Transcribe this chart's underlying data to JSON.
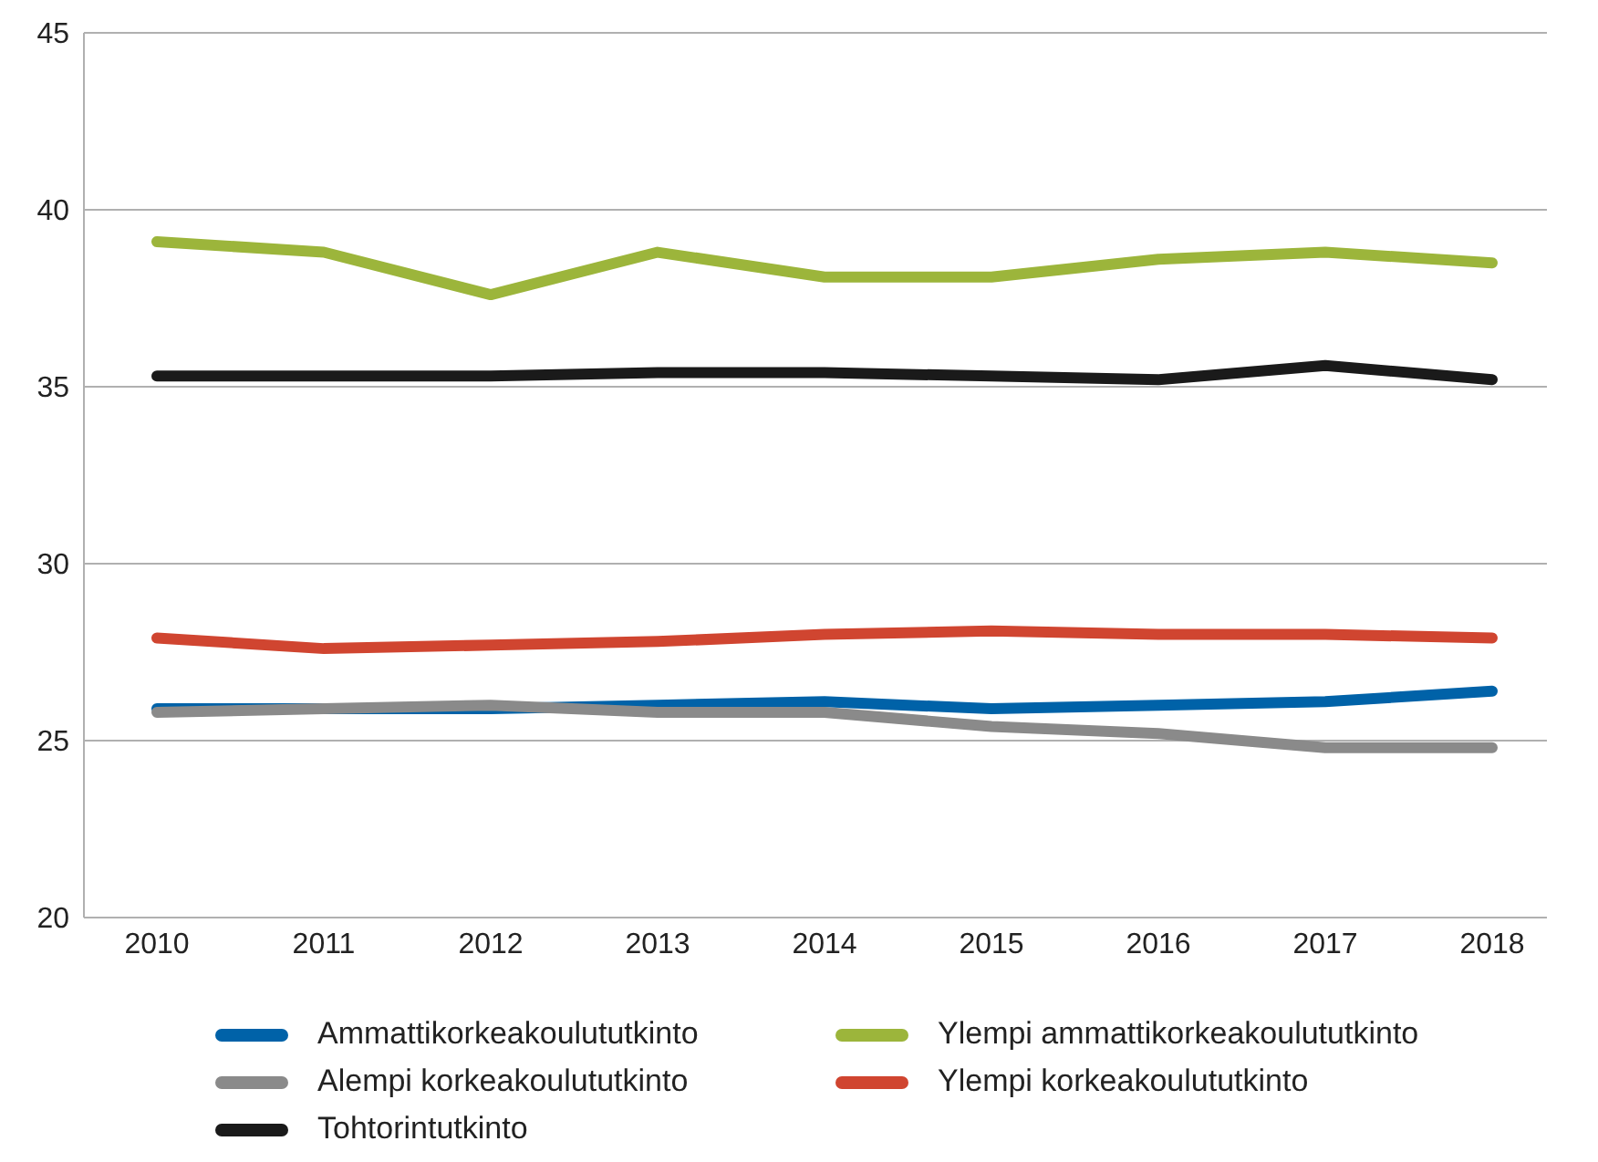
{
  "chart_data": {
    "type": "line",
    "categories": [
      "2010",
      "2011",
      "2012",
      "2013",
      "2014",
      "2015",
      "2016",
      "2017",
      "2018"
    ],
    "ylim": [
      20,
      45
    ],
    "yticks": [
      20,
      25,
      30,
      35,
      40,
      45
    ],
    "grid": "y",
    "legend": "bottom",
    "marker": "none",
    "line_style": "solid",
    "series": [
      {
        "name": "Ammattikorkeakoulututkinto",
        "color": "#0062a8",
        "values": [
          25.9,
          25.9,
          25.9,
          26.0,
          26.1,
          25.9,
          26.0,
          26.1,
          26.4
        ]
      },
      {
        "name": "Ylempi ammattikorkeakoulututkinto",
        "color": "#9cb53b",
        "values": [
          39.1,
          38.8,
          37.6,
          38.8,
          38.1,
          38.1,
          38.6,
          38.8,
          38.5
        ]
      },
      {
        "name": "Alempi korkeakoulututkinto",
        "color": "#8a8a8a",
        "values": [
          25.8,
          25.9,
          26.0,
          25.8,
          25.8,
          25.4,
          25.2,
          24.8,
          24.8
        ]
      },
      {
        "name": "Ylempi korkeakoulututkinto",
        "color": "#d04530",
        "values": [
          27.9,
          27.6,
          27.7,
          27.8,
          28.0,
          28.1,
          28.0,
          28.0,
          27.9
        ]
      },
      {
        "name": "Tohtorintutkinto",
        "color": "#1a1a1a",
        "values": [
          35.3,
          35.3,
          35.3,
          35.4,
          35.4,
          35.3,
          35.2,
          35.6,
          35.2
        ]
      }
    ]
  }
}
